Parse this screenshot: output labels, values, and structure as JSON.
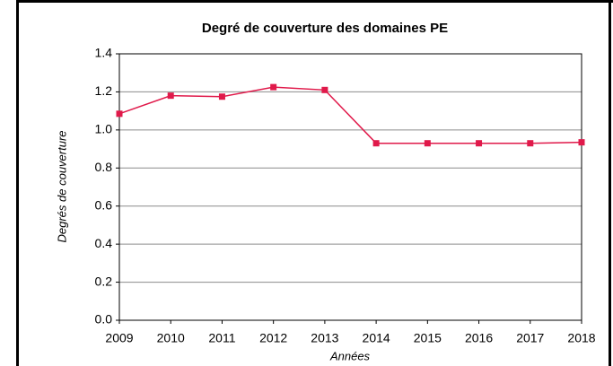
{
  "chart_data": {
    "type": "line",
    "title": "Degré de couverture des domaines PE",
    "y_label": "Degrés de couverture",
    "x_label": "Années",
    "categories": [
      "2009",
      "2010",
      "2011",
      "2012",
      "2013",
      "2014",
      "2015",
      "2016",
      "2017",
      "2018"
    ],
    "series": [
      {
        "name": "Degré de couverture",
        "color": "#e0194a",
        "values": [
          1.085,
          1.18,
          1.175,
          1.225,
          1.21,
          0.93,
          0.93,
          0.93,
          0.93,
          0.935
        ]
      }
    ],
    "ylim": [
      0,
      1.4
    ],
    "yticks": [
      {
        "value": 0,
        "label": "0.0"
      },
      0.2,
      0.4,
      0.6,
      0.8,
      {
        "value": 1,
        "label": "1.0"
      },
      1.2,
      1.4
    ],
    "grid": true
  }
}
